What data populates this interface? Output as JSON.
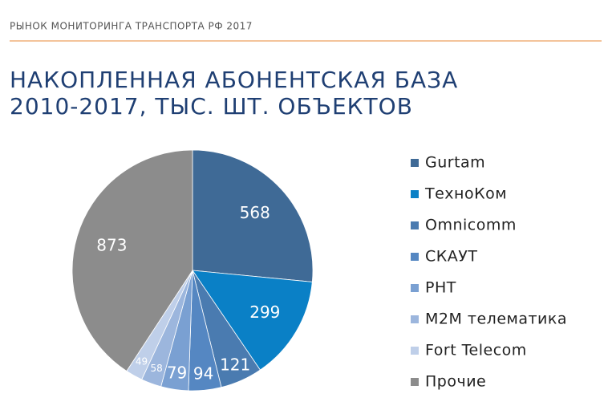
{
  "header": {
    "text": "РЫНОК МОНИТОРИНГА ТРАНСПОРТА РФ 2017"
  },
  "chart_data": {
    "type": "pie",
    "title": [
      "НАКОПЛЕННАЯ АБОНЕНТСКАЯ БАЗА",
      "2010-2017, ТЫС. ШТ. ОБЪЕКТОВ"
    ],
    "categories": [
      "Gurtam",
      "ТехноКом",
      "Omnicomm",
      "СКАУТ",
      "РНТ",
      "M2M телематика",
      "Fort Telecom",
      "Прочие"
    ],
    "values": [
      568,
      299,
      121,
      94,
      79,
      58,
      49,
      873
    ],
    "colors": [
      "#3f6a96",
      "#0a80c6",
      "#4a7bb0",
      "#5587c2",
      "#7aa0d2",
      "#9cb6dd",
      "#bfcfe9",
      "#8c8c8c"
    ],
    "legend": "right"
  }
}
